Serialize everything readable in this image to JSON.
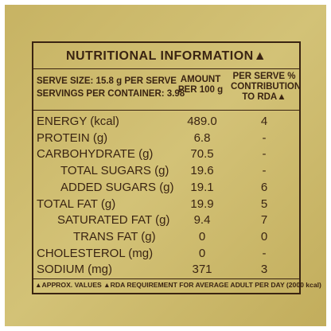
{
  "title": "NUTRITIONAL INFORMATION▲",
  "header": {
    "serve_size": "SERVE SIZE: 15.8 g PER SERVE",
    "servings": "SERVINGS PER CONTAINER: 3.98",
    "amount": "AMOUNT PER 100 g",
    "rda": "PER SERVE % CONTRIBUTION TO RDA▲"
  },
  "table": {
    "rows": [
      [
        "ENERGY (kcal)",
        "489.0",
        "4"
      ],
      [
        "PROTEIN (g)",
        "6.8",
        "-"
      ],
      [
        "CARBOHYDRATE (g)",
        "70.5",
        "-"
      ],
      [
        "TOTAL SUGARS (g)",
        "19.6",
        "-"
      ],
      [
        "ADDED SUGARS (g)",
        "19.1",
        "6"
      ],
      [
        "TOTAL FAT (g)",
        "19.9",
        "5"
      ],
      [
        "SATURATED FAT (g)",
        "9.4",
        "7"
      ],
      [
        "TRANS FAT (g)",
        "0",
        "0"
      ],
      [
        "CHOLESTEROL (mg)",
        "0",
        "-"
      ],
      [
        "SODIUM (mg)",
        "371",
        "3"
      ]
    ]
  },
  "footer": "▲APPROX. VALUES ▲RDA REQUIREMENT FOR AVERAGE ADULT PER DAY (2000 kcal)"
}
